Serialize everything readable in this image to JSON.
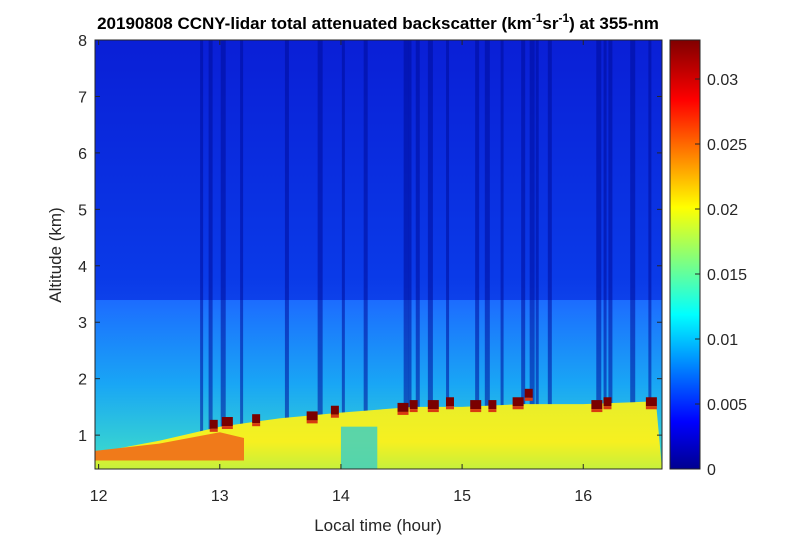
{
  "chart_data": {
    "type": "heatmap",
    "title": {
      "prefix": "20190808 CCNY-lidar total attenuated backscatter (km",
      "exp1": "-1",
      "mid": "sr",
      "exp2": "-1",
      "suffix": ") at 355-nm"
    },
    "xlabel": "Local time (hour)",
    "ylabel": "Altitude (km)",
    "xlim": [
      11.97,
      16.65
    ],
    "ylim": [
      0.4,
      8.0
    ],
    "xticks": [
      "12",
      "13",
      "14",
      "15",
      "16"
    ],
    "xtick_values": [
      12,
      13,
      14,
      15,
      16
    ],
    "yticks": [
      "1",
      "2",
      "3",
      "4",
      "5",
      "6",
      "7",
      "8"
    ],
    "ytick_values": [
      1,
      2,
      3,
      4,
      5,
      6,
      7,
      8
    ],
    "colorbar": {
      "range": [
        0,
        0.033
      ],
      "ticks": [
        "0",
        "0.005",
        "0.01",
        "0.015",
        "0.02",
        "0.025",
        "0.03"
      ],
      "tick_values": [
        0,
        0.005,
        0.01,
        0.015,
        0.02,
        0.025,
        0.03
      ],
      "colormap": "jet"
    },
    "grid": false,
    "boundary_layer_top_km": [
      {
        "time": 12.0,
        "altitude": 0.7
      },
      {
        "time": 12.5,
        "altitude": 0.9
      },
      {
        "time": 13.0,
        "altitude": 1.15
      },
      {
        "time": 13.5,
        "altitude": 1.3
      },
      {
        "time": 14.0,
        "altitude": 1.4
      },
      {
        "time": 14.3,
        "altitude": 1.45
      },
      {
        "time": 14.6,
        "altitude": 1.5
      },
      {
        "time": 15.0,
        "altitude": 1.5
      },
      {
        "time": 15.5,
        "altitude": 1.55
      },
      {
        "time": 16.0,
        "altitude": 1.55
      },
      {
        "time": 16.6,
        "altitude": 1.6
      }
    ],
    "cloud_events": [
      {
        "time": 12.95,
        "altitude": 1.2
      },
      {
        "time": 13.05,
        "altitude": 1.25
      },
      {
        "time": 13.3,
        "altitude": 1.3
      },
      {
        "time": 13.75,
        "altitude": 1.35
      },
      {
        "time": 13.95,
        "altitude": 1.45
      },
      {
        "time": 14.5,
        "altitude": 1.5
      },
      {
        "time": 14.6,
        "altitude": 1.55
      },
      {
        "time": 14.75,
        "altitude": 1.55
      },
      {
        "time": 14.9,
        "altitude": 1.6
      },
      {
        "time": 15.1,
        "altitude": 1.55
      },
      {
        "time": 15.25,
        "altitude": 1.55
      },
      {
        "time": 15.45,
        "altitude": 1.6
      },
      {
        "time": 15.55,
        "altitude": 1.75
      },
      {
        "time": 16.1,
        "altitude": 1.55
      },
      {
        "time": 16.2,
        "altitude": 1.6
      },
      {
        "time": 16.55,
        "altitude": 1.6
      }
    ],
    "dark_stripes_hour": [
      12.85,
      12.92,
      13.02,
      13.18,
      13.55,
      13.82,
      14.02,
      14.2,
      14.53,
      14.57,
      14.63,
      14.73,
      14.88,
      15.12,
      15.2,
      15.33,
      15.5,
      15.57,
      15.62,
      15.72,
      16.12,
      16.18,
      16.22,
      16.4,
      16.55
    ],
    "low_signal_gap_hour": [
      14.3,
      14.55
    ]
  }
}
